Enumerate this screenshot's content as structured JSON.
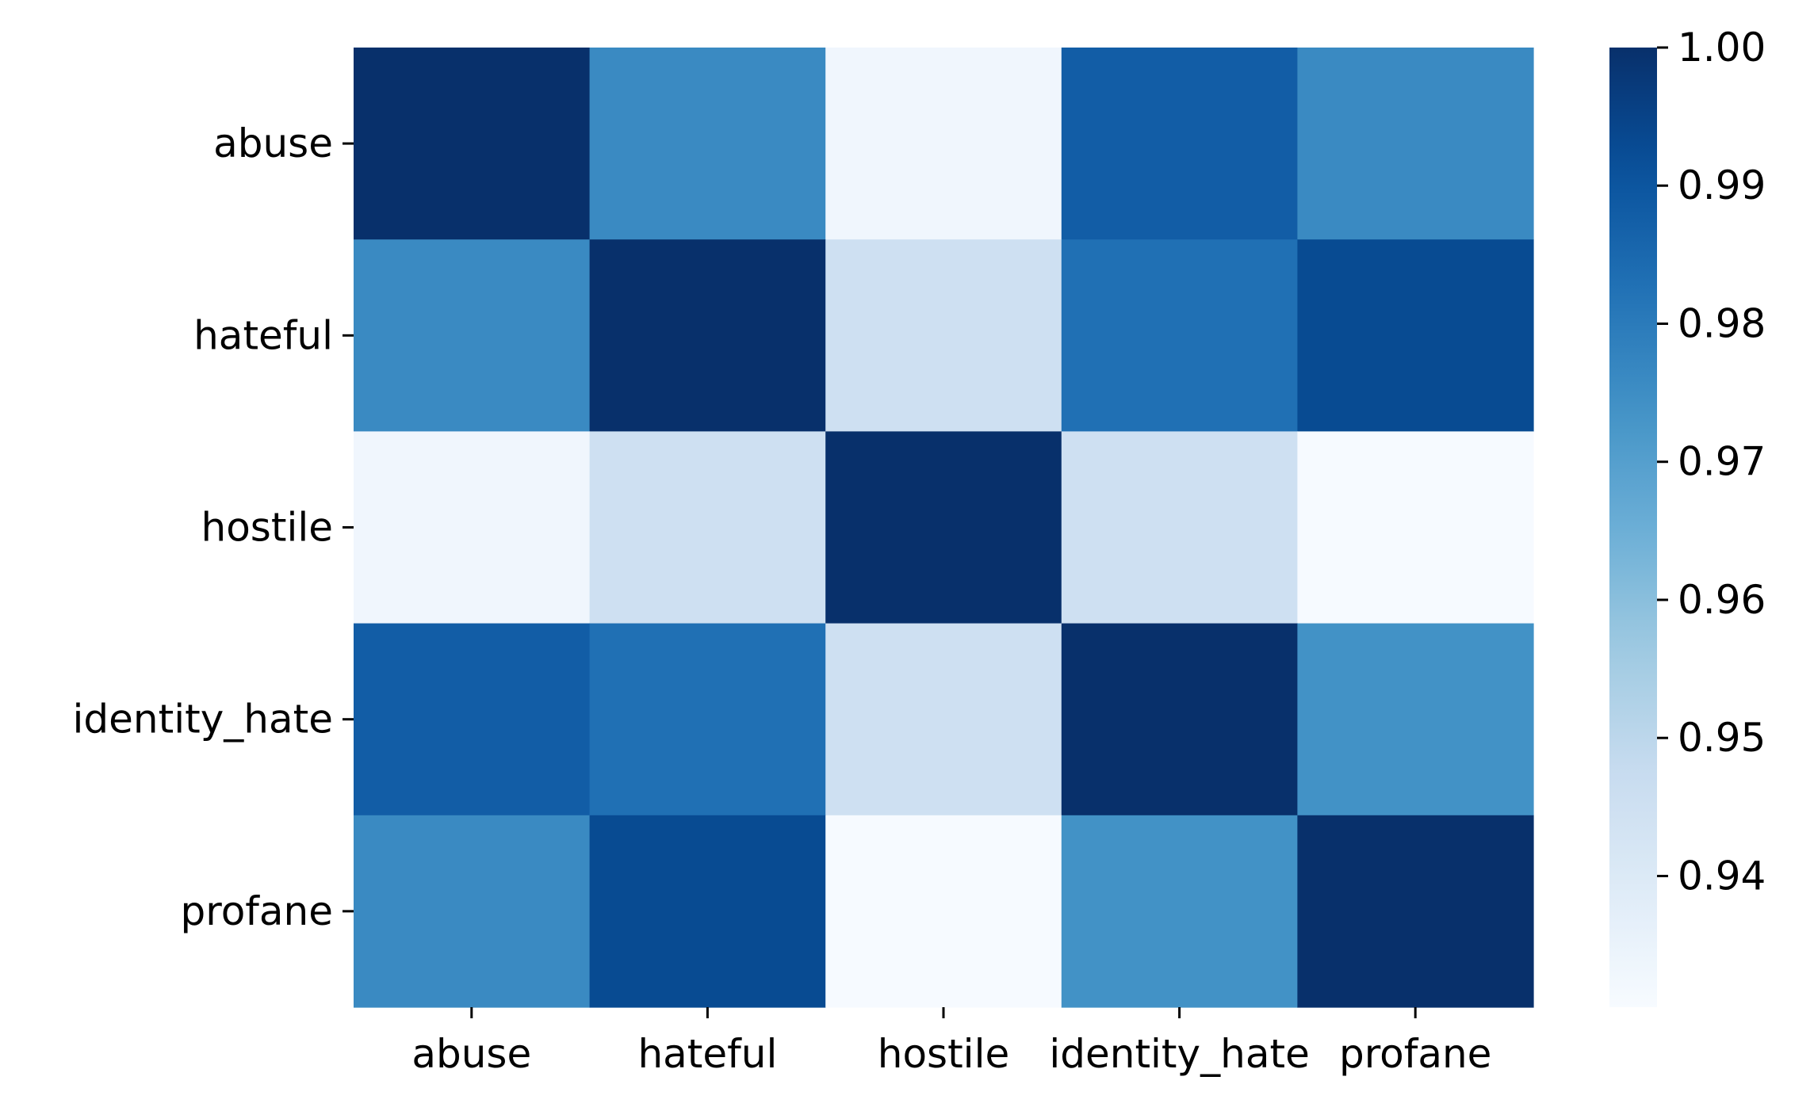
{
  "chart_data": {
    "type": "heatmap",
    "title": "",
    "xlabel": "",
    "ylabel": "",
    "x_categories": [
      "abuse",
      "hateful",
      "hostile",
      "identity_hate",
      "profane"
    ],
    "y_categories": [
      "abuse",
      "hateful",
      "hostile",
      "identity_hate",
      "profane"
    ],
    "values": [
      [
        1.0,
        0.976,
        0.933,
        0.988,
        0.976
      ],
      [
        0.976,
        1.0,
        0.945,
        0.983,
        0.993
      ],
      [
        0.933,
        0.945,
        1.0,
        0.945,
        0.931
      ],
      [
        0.988,
        0.983,
        0.945,
        1.0,
        0.974
      ],
      [
        0.976,
        0.993,
        0.931,
        0.974,
        1.0
      ]
    ],
    "colormap": "Blues",
    "color_low": "#f7fbff",
    "color_high": "#08306b",
    "colorbar": {
      "vmin": 0.9305,
      "vmax": 1.0,
      "ticks": [
        0.94,
        0.95,
        0.96,
        0.97,
        0.98,
        0.99,
        1.0
      ],
      "tick_labels": [
        "0.94",
        "0.95",
        "0.96",
        "0.97",
        "0.98",
        "0.99",
        "1.00"
      ]
    },
    "grid": false,
    "legend": "colorbar-right"
  }
}
